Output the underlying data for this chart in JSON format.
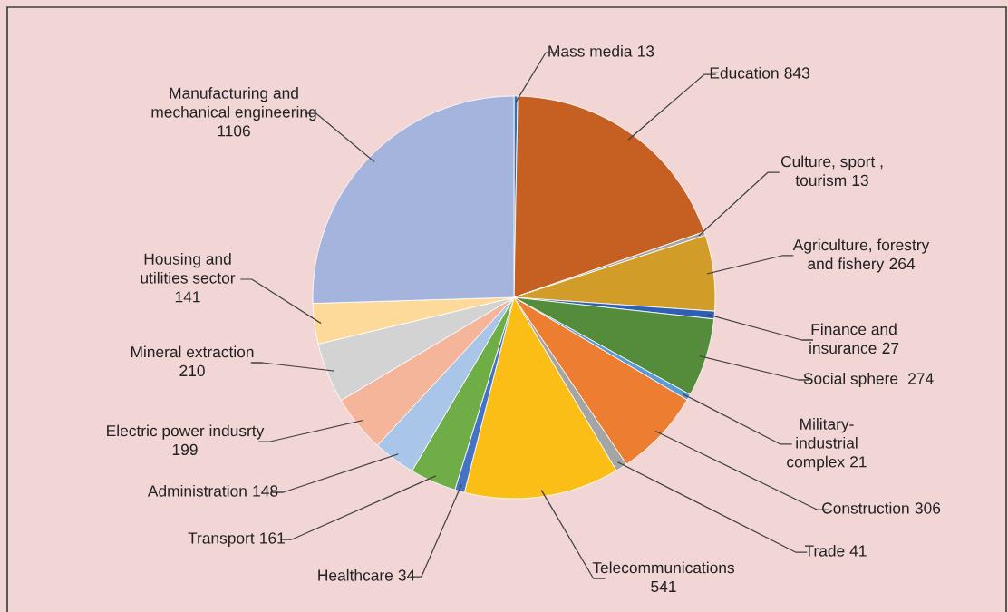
{
  "chart_data": {
    "type": "pie",
    "categories": [
      "Mass media",
      "Education",
      "Culture, sport ,\ntourism",
      "Agriculture, forestry\nand fishery",
      "Finance and\ninsurance",
      "Social sphere ",
      "Military-\nindustrial\ncomplex",
      "Construction",
      "Trade",
      "Telecommunications",
      "Healthcare",
      "Transport",
      "Administration",
      "Electric power indusrty",
      "Mineral extraction",
      "Housing and\nutilities sector",
      "Manufacturing and\nmechanical engineering"
    ],
    "values": [
      13,
      843,
      13,
      264,
      27,
      274,
      21,
      306,
      41,
      541,
      34,
      161,
      148,
      199,
      210,
      141,
      1106
    ],
    "colors": [
      "#2e75b6",
      "#c55f22",
      "#a5a5a5",
      "#d19c28",
      "#2e5fb5",
      "#548c3c",
      "#5b9bd5",
      "#ed7d31",
      "#a5a5a5",
      "#fbbe16",
      "#4472c4",
      "#6fad47",
      "#a9c6e8",
      "#f4b59a",
      "#d3d3d3",
      "#fdd99a",
      "#a4b4dc"
    ],
    "data_labels": true,
    "legend": false
  }
}
